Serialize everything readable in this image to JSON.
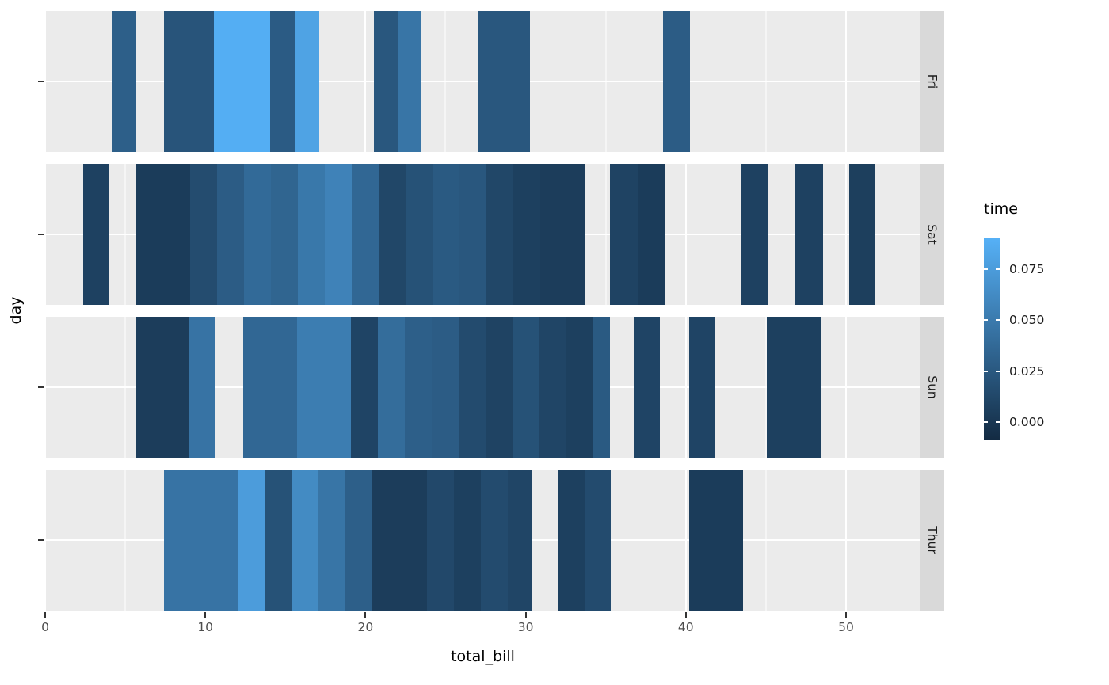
{
  "chart_data": {
    "type": "heatmap",
    "title": "",
    "xlabel": "total_bill",
    "ylabel": "day",
    "facets": [
      "Fri",
      "Sat",
      "Sun",
      "Thur"
    ],
    "xlim": [
      0,
      54.65
    ],
    "x_ticks": [
      0,
      10,
      20,
      30,
      40,
      50
    ],
    "x_tick_labels": [
      "0",
      "10",
      "20",
      "30",
      "40",
      "50"
    ],
    "x_minor_ticks": [
      5,
      15,
      25,
      35,
      45
    ],
    "grid": true,
    "panel_bg": "#EBEBEB",
    "strip_bg": "#D9D9D9",
    "grid_color": "#FFFFFF",
    "legend": {
      "title": "time",
      "position": "right",
      "low": "#132B43",
      "high": "#56B1F7",
      "domain": [
        -0.0084,
        0.0903
      ],
      "ticks": [
        {
          "label": "0.000",
          "value": 0.0
        },
        {
          "label": "0.025",
          "value": 0.025
        },
        {
          "label": "0.050",
          "value": 0.05
        },
        {
          "label": "0.075",
          "value": 0.075
        }
      ]
    },
    "series": [
      {
        "facet": "Fri",
        "segments": [
          {
            "x0": 4.15,
            "x1": 5.7,
            "time": 0.03
          },
          {
            "x0": 7.4,
            "x1": 10.55,
            "time": 0.022
          },
          {
            "x0": 10.55,
            "x1": 14.05,
            "time": 0.088
          },
          {
            "x0": 14.05,
            "x1": 15.6,
            "time": 0.027
          },
          {
            "x0": 15.6,
            "x1": 17.1,
            "time": 0.08
          },
          {
            "x0": 20.5,
            "x1": 22.0,
            "time": 0.024
          },
          {
            "x0": 22.0,
            "x1": 23.5,
            "time": 0.046
          },
          {
            "x0": 27.05,
            "x1": 30.25,
            "time": 0.024
          },
          {
            "x0": 38.6,
            "x1": 40.25,
            "time": 0.028
          }
        ]
      },
      {
        "facet": "Sat",
        "segments": [
          {
            "x0": 2.35,
            "x1": 3.95,
            "time": 0.008
          },
          {
            "x0": 5.7,
            "x1": 9.05,
            "time": 0.004
          },
          {
            "x0": 9.05,
            "x1": 10.75,
            "time": 0.016
          },
          {
            "x0": 10.75,
            "x1": 12.4,
            "time": 0.028
          },
          {
            "x0": 12.4,
            "x1": 14.1,
            "time": 0.038
          },
          {
            "x0": 14.1,
            "x1": 15.8,
            "time": 0.034
          },
          {
            "x0": 15.8,
            "x1": 17.45,
            "time": 0.048
          },
          {
            "x0": 17.45,
            "x1": 19.15,
            "time": 0.056
          },
          {
            "x0": 19.15,
            "x1": 20.8,
            "time": 0.036
          },
          {
            "x0": 20.8,
            "x1": 22.5,
            "time": 0.012
          },
          {
            "x0": 22.5,
            "x1": 24.2,
            "time": 0.02
          },
          {
            "x0": 24.2,
            "x1": 25.85,
            "time": 0.026
          },
          {
            "x0": 25.85,
            "x1": 27.55,
            "time": 0.024
          },
          {
            "x0": 27.55,
            "x1": 29.25,
            "time": 0.012
          },
          {
            "x0": 29.25,
            "x1": 30.9,
            "time": 0.007
          },
          {
            "x0": 30.9,
            "x1": 33.75,
            "time": 0.005
          },
          {
            "x0": 35.25,
            "x1": 37.0,
            "time": 0.009
          },
          {
            "x0": 37.0,
            "x1": 38.7,
            "time": 0.004
          },
          {
            "x0": 43.45,
            "x1": 45.15,
            "time": 0.008
          },
          {
            "x0": 46.85,
            "x1": 48.55,
            "time": 0.008
          },
          {
            "x0": 50.2,
            "x1": 51.85,
            "time": 0.006
          }
        ]
      },
      {
        "facet": "Sun",
        "segments": [
          {
            "x0": 5.7,
            "x1": 8.95,
            "time": 0.005
          },
          {
            "x0": 8.95,
            "x1": 10.65,
            "time": 0.045
          },
          {
            "x0": 12.35,
            "x1": 15.75,
            "time": 0.036
          },
          {
            "x0": 15.75,
            "x1": 19.1,
            "time": 0.052
          },
          {
            "x0": 19.1,
            "x1": 20.75,
            "time": 0.01
          },
          {
            "x0": 20.75,
            "x1": 22.45,
            "time": 0.04
          },
          {
            "x0": 22.45,
            "x1": 24.15,
            "time": 0.03
          },
          {
            "x0": 24.15,
            "x1": 25.8,
            "time": 0.028
          },
          {
            "x0": 25.8,
            "x1": 27.5,
            "time": 0.015
          },
          {
            "x0": 27.5,
            "x1": 29.2,
            "time": 0.009
          },
          {
            "x0": 29.2,
            "x1": 30.85,
            "time": 0.02
          },
          {
            "x0": 30.85,
            "x1": 32.55,
            "time": 0.011
          },
          {
            "x0": 32.55,
            "x1": 34.2,
            "time": 0.007
          },
          {
            "x0": 34.2,
            "x1": 35.25,
            "time": 0.026
          },
          {
            "x0": 36.75,
            "x1": 38.4,
            "time": 0.01
          },
          {
            "x0": 40.2,
            "x1": 41.85,
            "time": 0.01
          },
          {
            "x0": 45.05,
            "x1": 48.4,
            "time": 0.007
          }
        ]
      },
      {
        "facet": "Thur",
        "segments": [
          {
            "x0": 7.4,
            "x1": 12.0,
            "time": 0.045
          },
          {
            "x0": 12.0,
            "x1": 13.7,
            "time": 0.075
          },
          {
            "x0": 13.7,
            "x1": 15.4,
            "time": 0.02
          },
          {
            "x0": 15.4,
            "x1": 17.05,
            "time": 0.062
          },
          {
            "x0": 17.05,
            "x1": 18.75,
            "time": 0.046
          },
          {
            "x0": 18.75,
            "x1": 20.45,
            "time": 0.03
          },
          {
            "x0": 20.45,
            "x1": 23.85,
            "time": 0.005
          },
          {
            "x0": 23.85,
            "x1": 25.5,
            "time": 0.013
          },
          {
            "x0": 25.5,
            "x1": 27.2,
            "time": 0.007
          },
          {
            "x0": 27.2,
            "x1": 28.9,
            "time": 0.015
          },
          {
            "x0": 28.9,
            "x1": 30.4,
            "time": 0.011
          },
          {
            "x0": 32.05,
            "x1": 33.75,
            "time": 0.007
          },
          {
            "x0": 33.75,
            "x1": 35.3,
            "time": 0.015
          },
          {
            "x0": 40.2,
            "x1": 43.55,
            "time": 0.004
          }
        ]
      }
    ]
  }
}
